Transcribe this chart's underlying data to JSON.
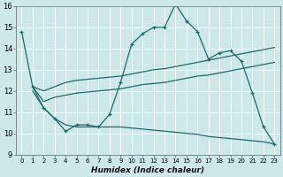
{
  "xlabel": "Humidex (Indice chaleur)",
  "bg_color": "#cce8e8",
  "grid_color": "#aacccc",
  "line_color": "#1a6b6b",
  "xlim": [
    -0.5,
    23.5
  ],
  "ylim": [
    9,
    16
  ],
  "xtick_labels": [
    "0",
    "1",
    "2",
    "3",
    "4",
    "5",
    "6",
    "7",
    "8",
    "9",
    "10",
    "11",
    "12",
    "13",
    "14",
    "15",
    "16",
    "17",
    "18",
    "19",
    "20",
    "21",
    "22",
    "23"
  ],
  "xtick_vals": [
    0,
    1,
    2,
    3,
    4,
    5,
    6,
    7,
    8,
    9,
    10,
    11,
    12,
    13,
    14,
    15,
    16,
    17,
    18,
    19,
    20,
    21,
    22,
    23
  ],
  "ytick_vals": [
    9,
    10,
    11,
    12,
    13,
    14,
    15,
    16
  ],
  "curve1_x": [
    0,
    1,
    2,
    3,
    4,
    5,
    6,
    7,
    8,
    9,
    10,
    11,
    12,
    13,
    14,
    15,
    16,
    17,
    18,
    19,
    20,
    21,
    22,
    23
  ],
  "curve1_y": [
    14.8,
    12.2,
    11.2,
    10.7,
    10.1,
    10.4,
    10.4,
    10.3,
    10.9,
    12.4,
    14.2,
    14.7,
    15.0,
    15.0,
    16.1,
    15.3,
    14.8,
    13.5,
    13.8,
    13.9,
    13.4,
    11.9,
    10.3,
    9.5
  ],
  "curve2_x": [
    1,
    2,
    3,
    4,
    5,
    6,
    7,
    8,
    9,
    10,
    11,
    12,
    13,
    14,
    15,
    16,
    17,
    18,
    19,
    20,
    21,
    22,
    23
  ],
  "curve2_y": [
    12.2,
    11.5,
    11.7,
    11.8,
    11.9,
    11.95,
    12.0,
    12.05,
    12.1,
    12.2,
    12.3,
    12.35,
    12.4,
    12.5,
    12.6,
    12.7,
    12.75,
    12.85,
    12.95,
    13.05,
    13.15,
    13.25,
    13.35
  ],
  "curve3_x": [
    1,
    2,
    3,
    4,
    5,
    6,
    7,
    8,
    9,
    10,
    11,
    12,
    13,
    14,
    15,
    16,
    17,
    18,
    19,
    20,
    21,
    22,
    23
  ],
  "curve3_y": [
    12.2,
    12.0,
    12.2,
    12.4,
    12.5,
    12.55,
    12.6,
    12.65,
    12.7,
    12.8,
    12.9,
    13.0,
    13.05,
    13.15,
    13.25,
    13.35,
    13.45,
    13.55,
    13.65,
    13.75,
    13.85,
    13.95,
    14.05
  ],
  "curve4_x": [
    1,
    2,
    3,
    4,
    5,
    6,
    7,
    8,
    9,
    10,
    11,
    12,
    13,
    14,
    15,
    16,
    17,
    18,
    19,
    20,
    21,
    22,
    23
  ],
  "curve4_y": [
    12.0,
    11.2,
    10.7,
    10.4,
    10.3,
    10.3,
    10.3,
    10.3,
    10.3,
    10.25,
    10.2,
    10.15,
    10.1,
    10.05,
    10.0,
    9.95,
    9.85,
    9.8,
    9.75,
    9.7,
    9.65,
    9.6,
    9.5
  ]
}
